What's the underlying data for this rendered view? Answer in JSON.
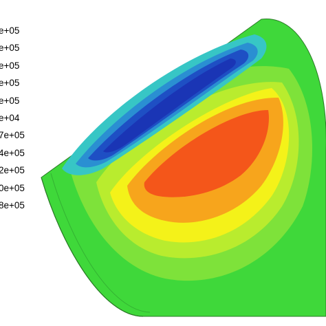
{
  "legend": {
    "labels": [
      "e+05",
      "e+05",
      "e+05",
      "e+05",
      "e+05",
      "e+04",
      "7e+05",
      "4e+05",
      "2e+05",
      "0e+05",
      "8e+05"
    ]
  },
  "colors": {
    "outer": "#3fd83a",
    "green_light": "#7ee23a",
    "yellow_green": "#b9ec2e",
    "yellow": "#f4f219",
    "orange": "#f7a51c",
    "red": "#f4561a",
    "cyan": "#37c6c5",
    "light_blue": "#2a8fd2",
    "blue": "#1e4fc4",
    "dark_blue": "#1a35b5"
  }
}
